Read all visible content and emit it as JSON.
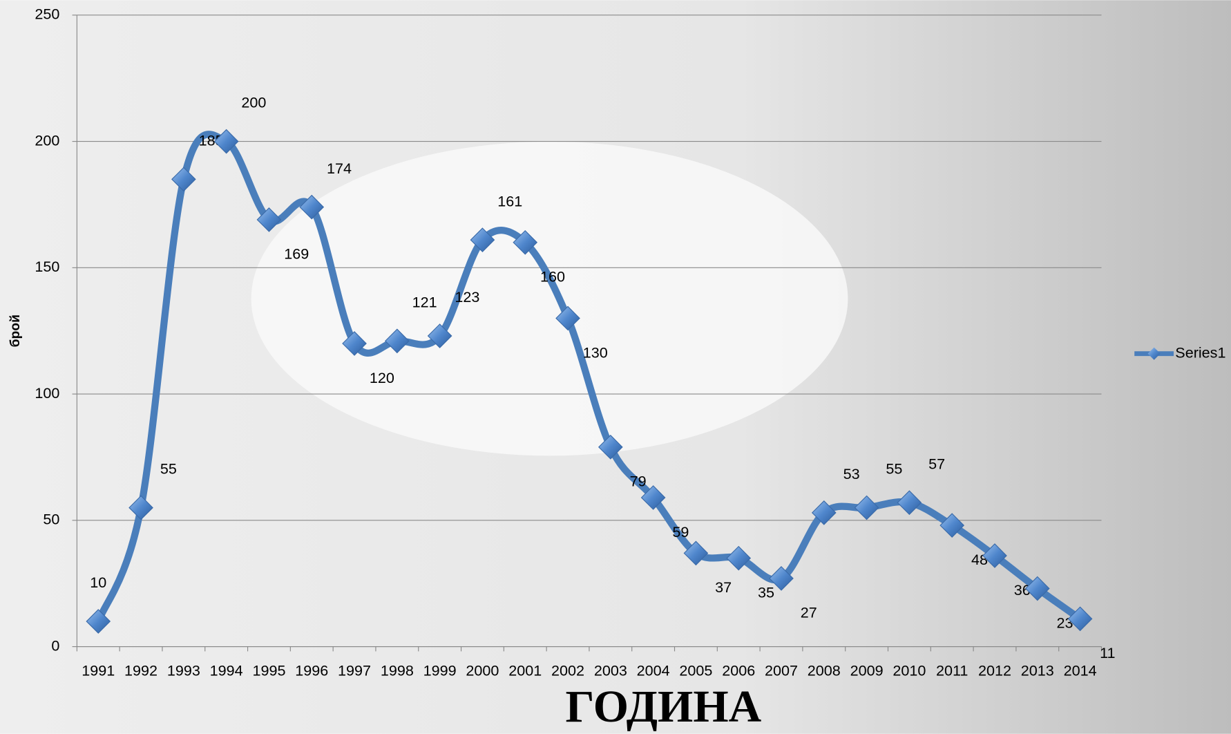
{
  "chart_data": {
    "type": "line",
    "x_label": "ГОДИНА",
    "y_label": "брой",
    "categories": [
      "1991",
      "1992",
      "1993",
      "1994",
      "1995",
      "1996",
      "1997",
      "1998",
      "1999",
      "2000",
      "2001",
      "2002",
      "2003",
      "2004",
      "2005",
      "2006",
      "2007",
      "2008",
      "2009",
      "2010",
      "2011",
      "2012",
      "2013",
      "2014"
    ],
    "series": [
      {
        "name": "Series1",
        "color": "#4a7ebb",
        "values": [
          10,
          55,
          185,
          200,
          169,
          174,
          120,
          121,
          123,
          161,
          160,
          130,
          79,
          59,
          37,
          35,
          27,
          53,
          55,
          57,
          48,
          36,
          23,
          11
        ]
      }
    ],
    "ylim": [
      0,
      250
    ],
    "yticks": [
      0,
      50,
      100,
      150,
      200,
      250
    ],
    "grid": true,
    "legend": "right"
  }
}
